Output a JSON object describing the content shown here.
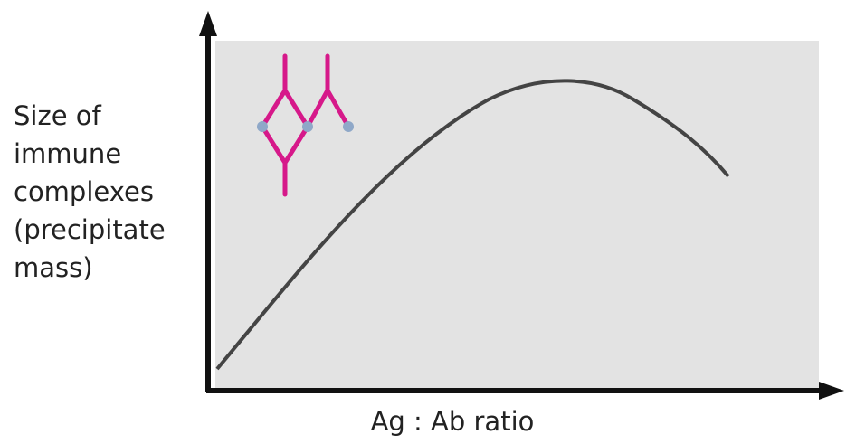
{
  "y_axis_label": [
    "Size of",
    "immune",
    "complexes",
    "(precipitate",
    "mass)"
  ],
  "x_axis_label": "Ag : Ab ratio"
}
